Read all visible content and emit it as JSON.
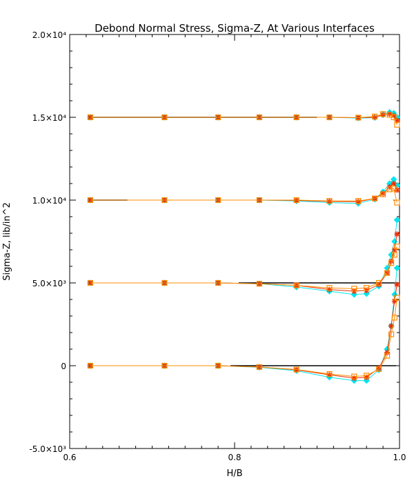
{
  "chart_data": {
    "type": "line",
    "title": "Debond Normal Stress, Sigma-Z, At Various Interfaces",
    "xlabel": "H/B",
    "ylabel": "Sigma-Z,  lib/in^2",
    "xlim": [
      0.6,
      1.0
    ],
    "ylim": [
      -5000,
      20000
    ],
    "x_ticks": [
      {
        "value": 0.6,
        "label": "0.6"
      },
      {
        "value": 0.8,
        "label": "0.8"
      },
      {
        "value": 1.0,
        "label": "1.0"
      }
    ],
    "y_ticks": [
      {
        "value": -5000,
        "label": "-5.0×10³"
      },
      {
        "value": 0,
        "label": "0"
      },
      {
        "value": 5000,
        "label": "5.0×10³"
      },
      {
        "value": 10000,
        "label": "1.0×10⁴"
      },
      {
        "value": 15000,
        "label": "1.5×10⁴"
      },
      {
        "value": 20000,
        "label": "2.0×10⁴"
      }
    ],
    "grid": false,
    "legend": false,
    "reference_lines": [
      {
        "y": 15000,
        "x": [
          0.625,
          0.9
        ],
        "color": "#000000"
      },
      {
        "y": 10000,
        "x": [
          0.625,
          0.67
        ],
        "color": "#000000"
      },
      {
        "y": 5000,
        "x": [
          0.805,
          0.996
        ],
        "color": "#000000"
      },
      {
        "y": 0,
        "x": [
          0.795,
          0.996
        ],
        "color": "#000000"
      }
    ],
    "series": [
      {
        "group": 15000,
        "color": "#00e5ee",
        "marker": "diamond",
        "x": [
          0.625,
          0.715,
          0.78,
          0.83,
          0.875,
          0.915,
          0.95,
          0.97,
          0.98,
          0.988,
          0.993,
          0.997
        ],
        "y": [
          15000,
          15000,
          15000,
          15000,
          15000,
          15000,
          14950,
          14980,
          15150,
          15300,
          15250,
          15000
        ]
      },
      {
        "group": 15000,
        "color": "#ee2c00",
        "marker": "star",
        "x": [
          0.625,
          0.715,
          0.78,
          0.83,
          0.875,
          0.915,
          0.95,
          0.97,
          0.98,
          0.988,
          0.993,
          0.997
        ],
        "y": [
          15000,
          15000,
          15000,
          15000,
          15000,
          15000,
          14980,
          15000,
          15150,
          15200,
          15100,
          14800
        ]
      },
      {
        "group": 15000,
        "color": "#ff8c00",
        "marker": "square",
        "x": [
          0.625,
          0.715,
          0.78,
          0.83,
          0.875,
          0.915,
          0.95,
          0.97,
          0.98,
          0.988,
          0.993,
          0.997
        ],
        "y": [
          15000,
          15000,
          15000,
          15000,
          15000,
          15000,
          14980,
          15050,
          15200,
          15150,
          15000,
          14550
        ]
      },
      {
        "group": 10000,
        "color": "#00e5ee",
        "marker": "diamond",
        "x": [
          0.625,
          0.715,
          0.78,
          0.83,
          0.875,
          0.915,
          0.95,
          0.97,
          0.98,
          0.988,
          0.993,
          0.997
        ],
        "y": [
          10000,
          10000,
          10000,
          10000,
          9950,
          9850,
          9800,
          10050,
          10500,
          11000,
          11250,
          10900
        ]
      },
      {
        "group": 10000,
        "color": "#ee2c00",
        "marker": "star",
        "x": [
          0.625,
          0.715,
          0.78,
          0.83,
          0.875,
          0.915,
          0.95,
          0.97,
          0.98,
          0.988,
          0.993,
          0.997
        ],
        "y": [
          10000,
          10000,
          10000,
          10000,
          9980,
          9920,
          9900,
          10100,
          10400,
          10800,
          11000,
          10600
        ]
      },
      {
        "group": 10000,
        "color": "#ff8c00",
        "marker": "square",
        "x": [
          0.625,
          0.715,
          0.78,
          0.83,
          0.875,
          0.915,
          0.95,
          0.97,
          0.98,
          0.988,
          0.993,
          0.997
        ],
        "y": [
          10000,
          10000,
          10000,
          10000,
          10000,
          9950,
          9950,
          10100,
          10350,
          10650,
          10700,
          9850
        ]
      },
      {
        "group": 5000,
        "color": "#00e5ee",
        "marker": "diamond",
        "x": [
          0.625,
          0.715,
          0.78,
          0.83,
          0.875,
          0.915,
          0.945,
          0.96,
          0.975,
          0.985,
          0.99,
          0.994,
          0.997
        ],
        "y": [
          5000,
          5000,
          5000,
          4950,
          4750,
          4500,
          4300,
          4350,
          4800,
          5900,
          6700,
          7500,
          8800
        ]
      },
      {
        "group": 5000,
        "color": "#ee2c00",
        "marker": "star",
        "x": [
          0.625,
          0.715,
          0.78,
          0.83,
          0.875,
          0.915,
          0.945,
          0.96,
          0.975,
          0.985,
          0.99,
          0.994,
          0.997
        ],
        "y": [
          5000,
          5000,
          5000,
          4950,
          4850,
          4600,
          4500,
          4550,
          4900,
          5600,
          6300,
          7000,
          7950
        ]
      },
      {
        "group": 5000,
        "color": "#ff8c00",
        "marker": "square",
        "x": [
          0.625,
          0.715,
          0.78,
          0.83,
          0.875,
          0.915,
          0.945,
          0.96,
          0.975,
          0.985,
          0.99,
          0.994,
          0.997
        ],
        "y": [
          5000,
          5000,
          5000,
          4950,
          4850,
          4700,
          4650,
          4700,
          5000,
          5600,
          6200,
          6700,
          7200
        ]
      },
      {
        "group": 0,
        "color": "#00e5ee",
        "marker": "diamond",
        "x": [
          0.625,
          0.715,
          0.78,
          0.83,
          0.875,
          0.915,
          0.945,
          0.96,
          0.975,
          0.985,
          0.99,
          0.994,
          0.997
        ],
        "y": [
          0,
          0,
          0,
          -100,
          -300,
          -700,
          -900,
          -900,
          -250,
          1000,
          2400,
          4300,
          5900
        ]
      },
      {
        "group": 0,
        "color": "#ee2c00",
        "marker": "star",
        "x": [
          0.625,
          0.715,
          0.78,
          0.83,
          0.875,
          0.915,
          0.945,
          0.96,
          0.975,
          0.985,
          0.99,
          0.994,
          0.997
        ],
        "y": [
          0,
          0,
          0,
          -80,
          -250,
          -550,
          -750,
          -700,
          -150,
          800,
          2400,
          3900,
          4900
        ]
      },
      {
        "group": 0,
        "color": "#ff8c00",
        "marker": "square",
        "x": [
          0.625,
          0.715,
          0.78,
          0.83,
          0.875,
          0.915,
          0.945,
          0.96,
          0.975,
          0.985,
          0.99,
          0.994,
          0.997
        ],
        "y": [
          0,
          0,
          0,
          -80,
          -230,
          -500,
          -650,
          -600,
          -200,
          600,
          1900,
          2900,
          4100
        ]
      }
    ]
  }
}
